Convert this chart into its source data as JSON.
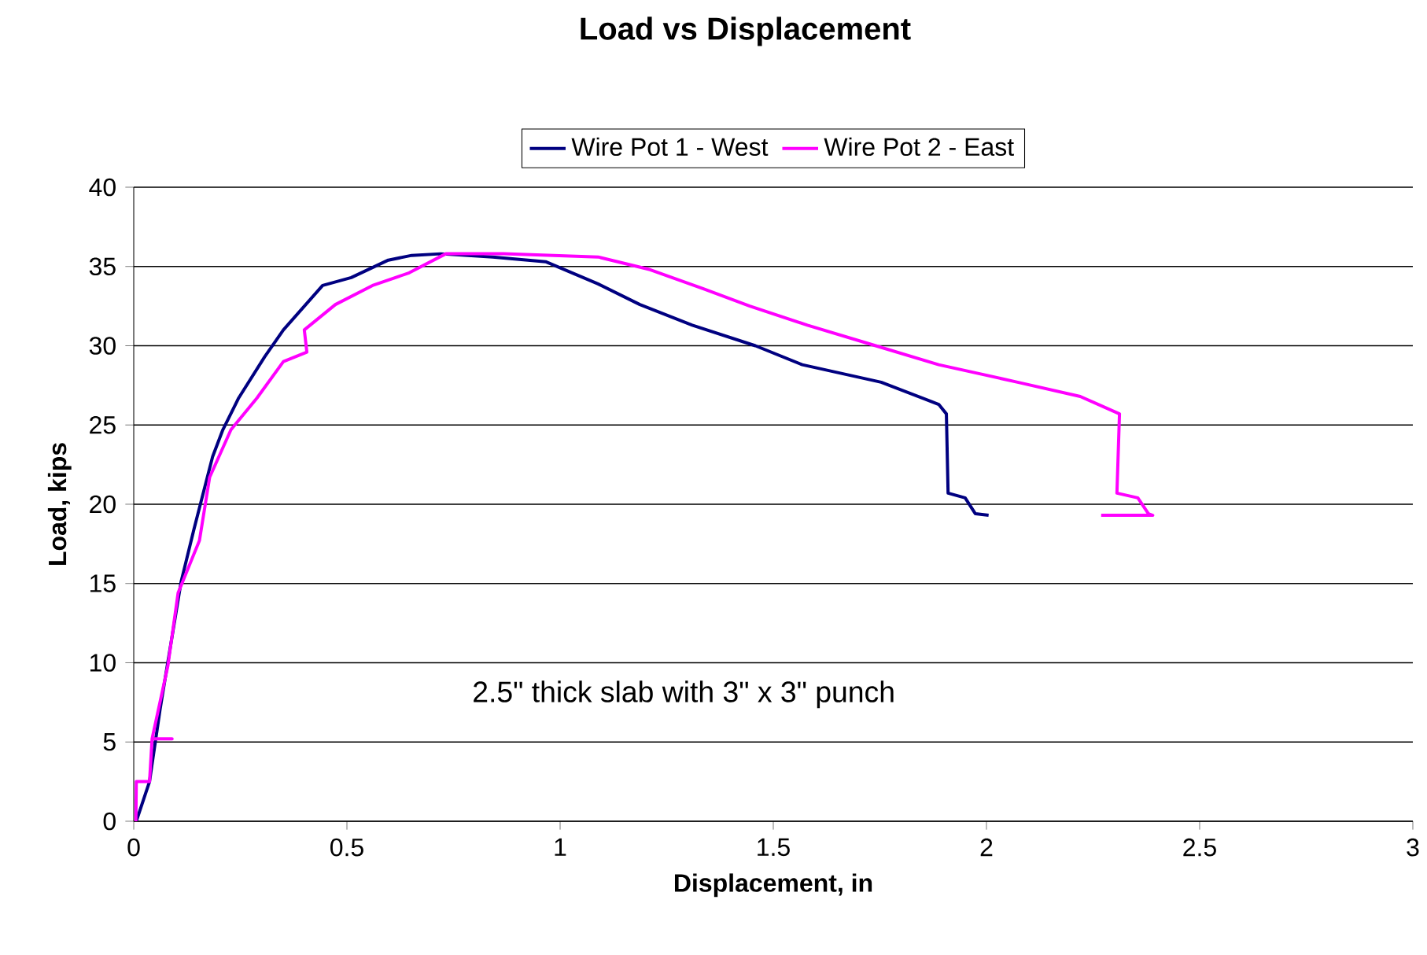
{
  "chart_data": {
    "type": "line",
    "title": "Load vs Displacement",
    "xlabel": "Displacement, in",
    "ylabel": "Load, kips",
    "annotations": [
      "2.5\" thick slab with 3\" x 3\" punch"
    ],
    "xlim": [
      0,
      3
    ],
    "ylim": [
      0,
      40
    ],
    "xticks": [
      0,
      0.5,
      1,
      1.5,
      2,
      2.5,
      3
    ],
    "yticks": [
      0,
      5,
      10,
      15,
      20,
      25,
      30,
      35,
      40
    ],
    "grid": "y",
    "legend": "top",
    "marker": "none",
    "line_style": "solid",
    "series": [
      {
        "name": "Wire Pot 1 - West",
        "color": "#000080",
        "x": [
          0.006,
          0.037,
          0.062,
          0.111,
          0.141,
          0.185,
          0.209,
          0.246,
          0.307,
          0.351,
          0.443,
          0.51,
          0.597,
          0.652,
          0.72,
          0.842,
          0.966,
          1.089,
          1.187,
          1.31,
          1.458,
          1.568,
          1.753,
          1.888,
          1.906,
          1.91,
          1.95,
          1.974,
          2.005
        ],
        "values": [
          0,
          2.5,
          7.1,
          15.1,
          18.4,
          23.0,
          24.7,
          26.7,
          29.3,
          31.0,
          33.8,
          34.3,
          35.4,
          35.7,
          35.8,
          35.6,
          35.3,
          33.9,
          32.6,
          31.3,
          30.0,
          28.8,
          27.7,
          26.3,
          25.7,
          20.7,
          20.4,
          19.4,
          19.3
        ]
      },
      {
        "name": "Wire Pot 2 - East",
        "color": "#ff00ff",
        "x": [
          0.005,
          0.006,
          0.037,
          0.043,
          0.09,
          0.043,
          0.08,
          0.104,
          0.154,
          0.178,
          0.228,
          0.289,
          0.351,
          0.406,
          0.4,
          0.473,
          0.56,
          0.646,
          0.732,
          0.867,
          1.089,
          1.211,
          1.335,
          1.445,
          1.58,
          1.728,
          1.888,
          2.073,
          2.22,
          2.312,
          2.306,
          2.355,
          2.38,
          2.39,
          2.269
        ],
        "values": [
          0,
          2.5,
          2.5,
          5.2,
          5.2,
          5.2,
          9.8,
          14.4,
          17.7,
          21.7,
          24.7,
          26.7,
          29.0,
          29.6,
          31.0,
          32.6,
          33.8,
          34.6,
          35.8,
          35.8,
          35.6,
          34.8,
          33.6,
          32.5,
          31.3,
          30.1,
          28.8,
          27.7,
          26.8,
          25.7,
          20.7,
          20.4,
          19.4,
          19.3,
          19.3
        ]
      }
    ]
  }
}
